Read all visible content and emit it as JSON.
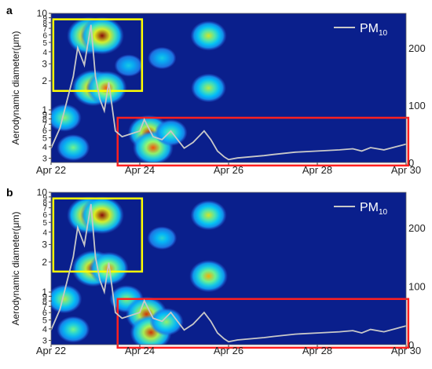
{
  "chart_data": [
    {
      "panel": "a",
      "type": "heatmap",
      "xlabel": "",
      "ylabel": "Aerodynamic diameter(μm)",
      "x_ticks": [
        "Apr 22",
        "Apr 24",
        "Apr 26",
        "Apr 28",
        "Apr 30"
      ],
      "xlim": [
        22,
        30
      ],
      "y_axis": "log",
      "ylim": [
        2.5,
        10
      ],
      "upper_y_ticks": [
        "10",
        "9",
        "8",
        "7",
        "6",
        "5",
        "4",
        "3",
        "2",
        "1"
      ],
      "lower_y_ticks": [
        "9",
        "8",
        "7",
        "6",
        "5",
        "4",
        "3"
      ],
      "right_axis_ticks": [
        "200",
        "100",
        "0"
      ],
      "right_ylim": [
        0,
        260
      ],
      "legend": "PM10",
      "legend_main": "PM",
      "legend_sub": "10",
      "hotspots": [
        {
          "day": 22.85,
          "yrel": 0.15,
          "level": 1.0
        },
        {
          "day": 23.15,
          "yrel": 0.15,
          "level": 1.0
        },
        {
          "day": 22.95,
          "yrel": 0.5,
          "level": 0.95
        },
        {
          "day": 23.25,
          "yrel": 0.5,
          "level": 0.85
        },
        {
          "day": 24.5,
          "yrel": 0.3,
          "level": 0.3
        },
        {
          "day": 25.55,
          "yrel": 0.15,
          "level": 0.65
        },
        {
          "day": 25.55,
          "yrel": 0.5,
          "level": 0.6
        },
        {
          "day": 22.3,
          "yrel": 0.7,
          "level": 0.55
        },
        {
          "day": 23.75,
          "yrel": 0.35,
          "level": 0.3
        },
        {
          "day": 24.2,
          "yrel": 0.8,
          "level": 0.9
        },
        {
          "day": 24.3,
          "yrel": 0.9,
          "level": 0.85
        },
        {
          "day": 24.7,
          "yrel": 0.8,
          "level": 0.5
        },
        {
          "day": 22.5,
          "yrel": 0.9,
          "level": 0.5
        }
      ],
      "boxes": [
        {
          "color": "#ffff00",
          "x0": 22.05,
          "x1": 24.05,
          "yrel0": 0.04,
          "yrel1": 0.52
        },
        {
          "color": "#ff2020",
          "x0": 23.5,
          "x1": 30.05,
          "yrel0": 0.7,
          "yrel1": 1.02
        }
      ],
      "pm10_series": [
        [
          22.0,
          25
        ],
        [
          22.2,
          60
        ],
        [
          22.4,
          120
        ],
        [
          22.5,
          150
        ],
        [
          22.6,
          200
        ],
        [
          22.75,
          170
        ],
        [
          22.9,
          240
        ],
        [
          23.0,
          150
        ],
        [
          23.1,
          110
        ],
        [
          23.2,
          90
        ],
        [
          23.3,
          140
        ],
        [
          23.45,
          55
        ],
        [
          23.6,
          45
        ],
        [
          23.8,
          50
        ],
        [
          24.0,
          55
        ],
        [
          24.1,
          75
        ],
        [
          24.2,
          60
        ],
        [
          24.3,
          45
        ],
        [
          24.5,
          40
        ],
        [
          24.7,
          55
        ],
        [
          24.9,
          35
        ],
        [
          25.0,
          25
        ],
        [
          25.2,
          35
        ],
        [
          25.45,
          55
        ],
        [
          25.6,
          40
        ],
        [
          25.75,
          20
        ],
        [
          25.9,
          10
        ],
        [
          26.0,
          5
        ],
        [
          26.2,
          8
        ],
        [
          26.5,
          10
        ],
        [
          26.8,
          12
        ],
        [
          27.0,
          14
        ],
        [
          27.5,
          18
        ],
        [
          28.0,
          20
        ],
        [
          28.5,
          22
        ],
        [
          28.8,
          24
        ],
        [
          29.0,
          20
        ],
        [
          29.2,
          26
        ],
        [
          29.5,
          22
        ],
        [
          29.8,
          28
        ],
        [
          30.0,
          32
        ]
      ]
    },
    {
      "panel": "b",
      "type": "heatmap",
      "xlabel": "",
      "ylabel": "Aerodynamic diameter(μm)",
      "x_ticks": [
        "Apr 22",
        "Apr 24",
        "Apr 26",
        "Apr 28",
        "Apr 30"
      ],
      "xlim": [
        22,
        30
      ],
      "y_axis": "log",
      "ylim": [
        2.5,
        10
      ],
      "upper_y_ticks": [
        "10",
        "9",
        "8",
        "7",
        "6",
        "5",
        "4",
        "3",
        "2",
        "1"
      ],
      "lower_y_ticks": [
        "9",
        "8",
        "7",
        "6",
        "5",
        "4",
        "3"
      ],
      "right_axis_ticks": [
        "200",
        "100",
        "0"
      ],
      "right_ylim": [
        0,
        260
      ],
      "legend": "PM10",
      "legend_main": "PM",
      "legend_sub": "10",
      "hotspots": [
        {
          "day": 22.85,
          "yrel": 0.15,
          "level": 1.0
        },
        {
          "day": 23.15,
          "yrel": 0.15,
          "level": 1.0
        },
        {
          "day": 22.95,
          "yrel": 0.5,
          "level": 0.95
        },
        {
          "day": 23.3,
          "yrel": 0.5,
          "level": 0.8
        },
        {
          "day": 24.5,
          "yrel": 0.3,
          "level": 0.35
        },
        {
          "day": 25.55,
          "yrel": 0.15,
          "level": 0.65
        },
        {
          "day": 25.55,
          "yrel": 0.55,
          "level": 0.75
        },
        {
          "day": 22.3,
          "yrel": 0.7,
          "level": 0.6
        },
        {
          "day": 23.7,
          "yrel": 0.7,
          "level": 0.55
        },
        {
          "day": 24.15,
          "yrel": 0.8,
          "level": 0.9
        },
        {
          "day": 24.25,
          "yrel": 0.92,
          "level": 0.9
        },
        {
          "day": 24.6,
          "yrel": 0.85,
          "level": 0.55
        },
        {
          "day": 22.5,
          "yrel": 0.9,
          "level": 0.5
        }
      ],
      "boxes": [
        {
          "color": "#ffff00",
          "x0": 22.05,
          "x1": 24.05,
          "yrel0": 0.04,
          "yrel1": 0.52
        },
        {
          "color": "#ff2020",
          "x0": 23.5,
          "x1": 30.05,
          "yrel0": 0.7,
          "yrel1": 1.02
        }
      ],
      "pm10_series": [
        [
          22.0,
          25
        ],
        [
          22.2,
          60
        ],
        [
          22.4,
          120
        ],
        [
          22.5,
          150
        ],
        [
          22.6,
          200
        ],
        [
          22.75,
          170
        ],
        [
          22.9,
          240
        ],
        [
          23.0,
          150
        ],
        [
          23.1,
          110
        ],
        [
          23.2,
          90
        ],
        [
          23.3,
          140
        ],
        [
          23.45,
          55
        ],
        [
          23.6,
          45
        ],
        [
          23.8,
          50
        ],
        [
          24.0,
          55
        ],
        [
          24.1,
          75
        ],
        [
          24.2,
          60
        ],
        [
          24.3,
          45
        ],
        [
          24.5,
          40
        ],
        [
          24.7,
          55
        ],
        [
          24.9,
          35
        ],
        [
          25.0,
          25
        ],
        [
          25.2,
          35
        ],
        [
          25.45,
          55
        ],
        [
          25.6,
          40
        ],
        [
          25.75,
          20
        ],
        [
          25.9,
          10
        ],
        [
          26.0,
          5
        ],
        [
          26.2,
          8
        ],
        [
          26.5,
          10
        ],
        [
          26.8,
          12
        ],
        [
          27.0,
          14
        ],
        [
          27.5,
          18
        ],
        [
          28.0,
          20
        ],
        [
          28.5,
          22
        ],
        [
          28.8,
          24
        ],
        [
          29.0,
          20
        ],
        [
          29.2,
          26
        ],
        [
          29.5,
          22
        ],
        [
          29.8,
          28
        ],
        [
          30.0,
          32
        ]
      ]
    }
  ],
  "colors": {
    "background_field": "#0a1f8c",
    "line": "#c8c8c8",
    "yellow_box": "#ffff00",
    "red_box": "#ff2020"
  }
}
